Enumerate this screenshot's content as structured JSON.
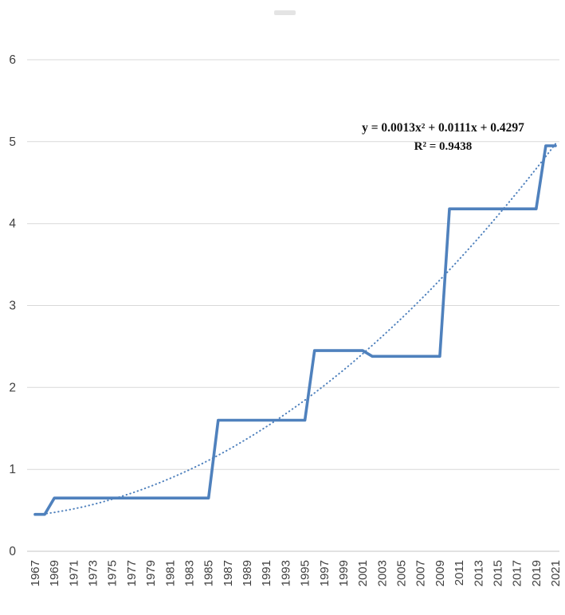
{
  "page": {
    "background": "#ffffff"
  },
  "chart_data": {
    "type": "line",
    "title": "",
    "x": [
      1967,
      1968,
      1969,
      1970,
      1971,
      1972,
      1973,
      1974,
      1975,
      1976,
      1977,
      1978,
      1979,
      1980,
      1981,
      1982,
      1983,
      1984,
      1985,
      1986,
      1987,
      1988,
      1989,
      1990,
      1991,
      1992,
      1993,
      1994,
      1995,
      1996,
      1997,
      1998,
      1999,
      2000,
      2001,
      2002,
      2003,
      2004,
      2005,
      2006,
      2007,
      2008,
      2009,
      2010,
      2011,
      2012,
      2013,
      2014,
      2015,
      2016,
      2017,
      2018,
      2019,
      2020,
      2021
    ],
    "series": [
      {
        "name": "value",
        "color": "#4F81BD",
        "style": "solid",
        "values": [
          0.45,
          0.45,
          0.65,
          0.65,
          0.65,
          0.65,
          0.65,
          0.65,
          0.65,
          0.65,
          0.65,
          0.65,
          0.65,
          0.65,
          0.65,
          0.65,
          0.65,
          0.65,
          0.65,
          1.6,
          1.6,
          1.6,
          1.6,
          1.6,
          1.6,
          1.6,
          1.6,
          1.6,
          1.6,
          2.45,
          2.45,
          2.45,
          2.45,
          2.45,
          2.45,
          2.38,
          2.38,
          2.38,
          2.38,
          2.38,
          2.38,
          2.38,
          2.38,
          4.18,
          4.18,
          4.18,
          4.18,
          4.18,
          4.18,
          4.18,
          4.18,
          4.18,
          4.18,
          4.95,
          4.95
        ]
      }
    ],
    "trendline": {
      "type": "polynomial",
      "order": 2,
      "coefficients": {
        "a": 0.0013,
        "b": 0.0111,
        "c": 0.4297
      },
      "r2": 0.9438,
      "equation_label": "y = 0.0013x² + 0.0111x + 0.4297",
      "r2_label": "R² = 0.9438",
      "color": "#4F81BD",
      "dash": "dotted"
    },
    "y_axis": {
      "min": 0,
      "max": 6,
      "step": 1,
      "ticks": [
        0,
        1,
        2,
        3,
        4,
        5,
        6
      ]
    },
    "x_axis": {
      "tick_labels": [
        "1967",
        "1969",
        "1971",
        "1973",
        "1975",
        "1977",
        "1979",
        "1981",
        "1983",
        "1985",
        "1987",
        "1989",
        "1991",
        "1993",
        "1995",
        "1997",
        "1999",
        "2001",
        "2003",
        "2005",
        "2007",
        "2009",
        "2011",
        "2013",
        "2015",
        "2017",
        "2019",
        "2021"
      ],
      "label_rotation": -90
    },
    "grid": "horizontal",
    "legend": "none",
    "colors": {
      "gridline": "#d9d9d9",
      "axis_line": "#c6c6c6",
      "axis_text": "#3f3f3f",
      "equation_text": "#111111"
    }
  }
}
